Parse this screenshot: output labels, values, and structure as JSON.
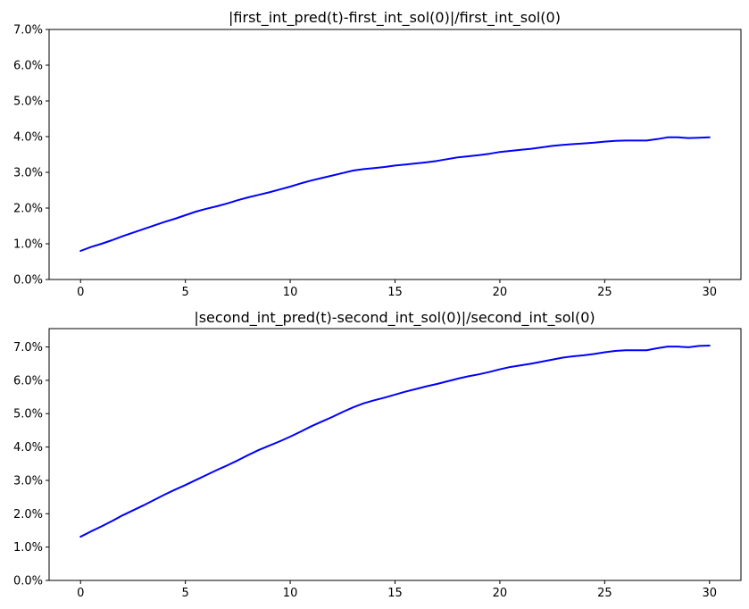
{
  "chart_data": [
    {
      "type": "line",
      "title": "|first_int_pred(t)-first_int_sol(0)|/first_int_sol(0)",
      "xlabel": "",
      "ylabel": "",
      "xlim": [
        -1.5,
        31.5
      ],
      "ylim": [
        0,
        0.07
      ],
      "xticks": [
        0,
        5,
        10,
        15,
        20,
        25,
        30
      ],
      "xtick_labels": [
        "0",
        "5",
        "10",
        "15",
        "20",
        "25",
        "30"
      ],
      "yticks": [
        0,
        0.01,
        0.02,
        0.03,
        0.04,
        0.05,
        0.06,
        0.07
      ],
      "ytick_labels": [
        "0.0%",
        "1.0%",
        "2.0%",
        "3.0%",
        "4.0%",
        "5.0%",
        "6.0%",
        "7.0%"
      ],
      "grid": false,
      "series": [
        {
          "color": "#0000ff",
          "x": [
            0,
            0.5,
            1,
            1.5,
            2,
            2.5,
            3,
            3.5,
            4,
            4.5,
            5,
            5.5,
            6,
            6.5,
            7,
            7.5,
            8,
            8.5,
            9,
            9.5,
            10,
            10.5,
            11,
            11.5,
            12,
            12.5,
            13,
            13.5,
            14,
            14.5,
            15,
            15.5,
            16,
            16.5,
            17,
            17.5,
            18,
            18.5,
            19,
            19.5,
            20,
            20.5,
            21,
            21.5,
            22,
            22.5,
            23,
            23.5,
            24,
            24.5,
            25,
            25.5,
            26,
            26.5,
            27,
            27.5,
            28,
            28.5,
            29,
            29.5,
            30
          ],
          "y": [
            0.008,
            0.0091,
            0.01,
            0.011,
            0.0121,
            0.0131,
            0.0141,
            0.0151,
            0.0161,
            0.017,
            0.018,
            0.019,
            0.0198,
            0.0205,
            0.0213,
            0.0222,
            0.023,
            0.0237,
            0.0244,
            0.0252,
            0.026,
            0.0269,
            0.0277,
            0.0284,
            0.0291,
            0.0298,
            0.0305,
            0.0309,
            0.0312,
            0.0315,
            0.0319,
            0.0322,
            0.0325,
            0.0328,
            0.0332,
            0.0337,
            0.0342,
            0.0345,
            0.0348,
            0.0352,
            0.0357,
            0.036,
            0.0363,
            0.0366,
            0.037,
            0.0374,
            0.0377,
            0.0379,
            0.0381,
            0.0383,
            0.0386,
            0.0388,
            0.0389,
            0.0389,
            0.0389,
            0.0393,
            0.0398,
            0.0398,
            0.0396,
            0.0397,
            0.0398
          ]
        }
      ]
    },
    {
      "type": "line",
      "title": "|second_int_pred(t)-second_int_sol(0)|/second_int_sol(0)",
      "xlabel": "",
      "ylabel": "",
      "xlim": [
        -1.5,
        31.5
      ],
      "ylim": [
        0,
        0.0755
      ],
      "xticks": [
        0,
        5,
        10,
        15,
        20,
        25,
        30
      ],
      "xtick_labels": [
        "0",
        "5",
        "10",
        "15",
        "20",
        "25",
        "30"
      ],
      "yticks": [
        0,
        0.01,
        0.02,
        0.03,
        0.04,
        0.05,
        0.06,
        0.07
      ],
      "ytick_labels": [
        "0.0%",
        "1.0%",
        "2.0%",
        "3.0%",
        "4.0%",
        "5.0%",
        "6.0%",
        "7.0%"
      ],
      "grid": false,
      "series": [
        {
          "color": "#0000ff",
          "x": [
            0,
            0.5,
            1,
            1.5,
            2,
            2.5,
            3,
            3.5,
            4,
            4.5,
            5,
            5.5,
            6,
            6.5,
            7,
            7.5,
            8,
            8.5,
            9,
            9.5,
            10,
            10.5,
            11,
            11.5,
            12,
            12.5,
            13,
            13.5,
            14,
            14.5,
            15,
            15.5,
            16,
            16.5,
            17,
            17.5,
            18,
            18.5,
            19,
            19.5,
            20,
            20.5,
            21,
            21.5,
            22,
            22.5,
            23,
            23.5,
            24,
            24.5,
            25,
            25.5,
            26,
            26.5,
            27,
            27.5,
            28,
            28.5,
            29,
            29.5,
            30
          ],
          "y": [
            0.0131,
            0.0147,
            0.0162,
            0.0178,
            0.0195,
            0.021,
            0.0225,
            0.0241,
            0.0257,
            0.0272,
            0.0286,
            0.0301,
            0.0316,
            0.0331,
            0.0345,
            0.036,
            0.0376,
            0.0391,
            0.0404,
            0.0417,
            0.0431,
            0.0446,
            0.0462,
            0.0476,
            0.049,
            0.0505,
            0.0519,
            0.0531,
            0.054,
            0.0548,
            0.0557,
            0.0566,
            0.0574,
            0.0582,
            0.0589,
            0.0597,
            0.0605,
            0.0612,
            0.0618,
            0.0625,
            0.0633,
            0.064,
            0.0645,
            0.065,
            0.0656,
            0.0662,
            0.0668,
            0.0672,
            0.0675,
            0.0679,
            0.0684,
            0.0688,
            0.069,
            0.069,
            0.069,
            0.0696,
            0.0701,
            0.0701,
            0.0699,
            0.0703,
            0.0704
          ]
        }
      ]
    }
  ]
}
